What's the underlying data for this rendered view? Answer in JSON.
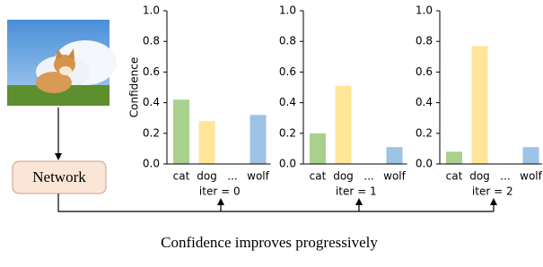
{
  "chart_data": [
    {
      "type": "bar",
      "categories": [
        "cat",
        "dog",
        "...",
        "wolf"
      ],
      "values": [
        0.42,
        0.28,
        null,
        0.32
      ],
      "colors": [
        "#a9d18e",
        "#ffe699",
        null,
        "#9dc3e6"
      ],
      "ylabel": "Confidence",
      "xlabel": "iter = 0",
      "ylim": [
        0,
        1
      ],
      "yticks": [
        {
          "value": 0,
          "label": "0.0"
        },
        0.2,
        0.4,
        0.6,
        0.8,
        {
          "value": 1,
          "label": "1.0"
        }
      ]
    },
    {
      "type": "bar",
      "categories": [
        "cat",
        "dog",
        "...",
        "wolf"
      ],
      "values": [
        0.2,
        0.51,
        null,
        0.11
      ],
      "colors": [
        "#a9d18e",
        "#ffe699",
        null,
        "#9dc3e6"
      ],
      "xlabel": "iter = 1",
      "ylim": [
        0,
        1
      ],
      "yticks": [
        {
          "value": 0,
          "label": "0.0"
        },
        0.2,
        0.4,
        0.6,
        0.8,
        {
          "value": 1,
          "label": "1.0"
        }
      ]
    },
    {
      "type": "bar",
      "categories": [
        "cat",
        "dog",
        "...",
        "wolf"
      ],
      "values": [
        0.08,
        0.77,
        null,
        0.11
      ],
      "colors": [
        "#a9d18e",
        "#ffe699",
        null,
        "#9dc3e6"
      ],
      "xlabel": "iter = 2",
      "ylim": [
        0,
        1
      ],
      "yticks": [
        {
          "value": 0,
          "label": "0.0"
        },
        0.2,
        0.4,
        0.6,
        0.8,
        {
          "value": 1,
          "label": "1.0"
        }
      ]
    }
  ],
  "diagram": {
    "node": "Network",
    "caption": "Confidence improves progressively"
  }
}
